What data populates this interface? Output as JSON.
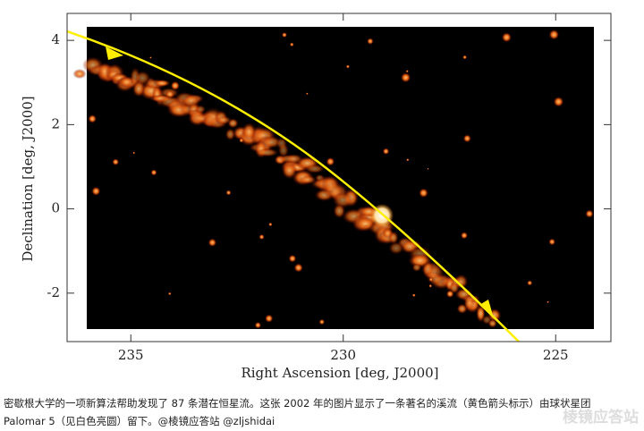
{
  "chart_data": {
    "type": "image",
    "xlabel": "Right Ascension [deg, J2000]",
    "ylabel": "Declination [deg, J2000]",
    "xlim": [
      236.5,
      223.7
    ],
    "ylim": [
      -3.15,
      4.64
    ],
    "xticks": [
      235,
      230,
      225
    ],
    "yticks": [
      4,
      2,
      0,
      -2
    ]
  },
  "caption": "密歇根大学的一项新算法帮助发现了 87 条潜在恒星流。这张 2002 年的图片显示了一条著名的溪流（黄色箭头标示）由球状星团 Palomar 5（见白色亮圆）留下。@棱镜应答站 @zljshidai",
  "watermark": "棱镜应答站"
}
